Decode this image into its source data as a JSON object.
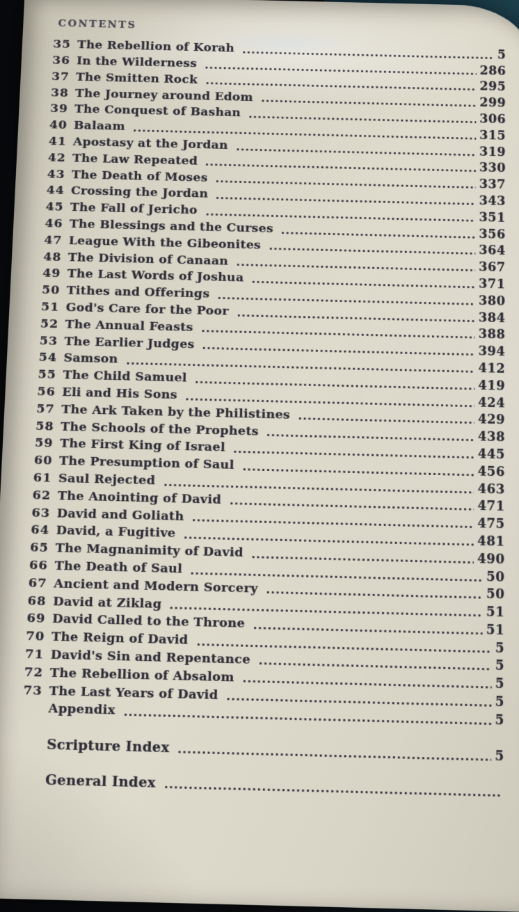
{
  "page": {
    "header": "CONTENTS"
  },
  "colors": {
    "paper": "#d8d4c6",
    "ink": "#2e2d36",
    "background_dark": "#0a0c10",
    "background_teal": "#16333f"
  },
  "toc": {
    "entries": [
      {
        "num": "35",
        "title": "The Rebellion of Korah",
        "page": "5"
      },
      {
        "num": "36",
        "title": "In the Wilderness",
        "page": "286"
      },
      {
        "num": "37",
        "title": "The Smitten Rock",
        "page": "295"
      },
      {
        "num": "38",
        "title": "The Journey around Edom",
        "page": "299"
      },
      {
        "num": "39",
        "title": "The Conquest of Bashan",
        "page": "306"
      },
      {
        "num": "40",
        "title": "Balaam",
        "page": "315"
      },
      {
        "num": "41",
        "title": "Apostasy at the Jordan",
        "page": "319"
      },
      {
        "num": "42",
        "title": "The Law Repeated",
        "page": "330"
      },
      {
        "num": "43",
        "title": "The Death of Moses",
        "page": "337"
      },
      {
        "num": "44",
        "title": "Crossing the Jordan",
        "page": "343"
      },
      {
        "num": "45",
        "title": "The Fall of Jericho",
        "page": "351"
      },
      {
        "num": "46",
        "title": "The Blessings and the Curses",
        "page": "356"
      },
      {
        "num": "47",
        "title": "League With the Gibeonites",
        "page": "364"
      },
      {
        "num": "48",
        "title": "The Division of Canaan",
        "page": "367"
      },
      {
        "num": "49",
        "title": "The Last Words of Joshua",
        "page": "371"
      },
      {
        "num": "50",
        "title": "Tithes and Offerings",
        "page": "380"
      },
      {
        "num": "51",
        "title": "God's Care for the Poor",
        "page": "384"
      },
      {
        "num": "52",
        "title": "The Annual Feasts",
        "page": "388"
      },
      {
        "num": "53",
        "title": "The Earlier Judges",
        "page": "394"
      },
      {
        "num": "54",
        "title": "Samson",
        "page": "412"
      },
      {
        "num": "55",
        "title": "The Child Samuel",
        "page": "419"
      },
      {
        "num": "56",
        "title": "Eli and His Sons",
        "page": "424"
      },
      {
        "num": "57",
        "title": "The Ark Taken by the Philistines",
        "page": "429"
      },
      {
        "num": "58",
        "title": "The Schools of the Prophets",
        "page": "438"
      },
      {
        "num": "59",
        "title": "The First King of Israel",
        "page": "445"
      },
      {
        "num": "60",
        "title": "The Presumption of Saul",
        "page": "456"
      },
      {
        "num": "61",
        "title": "Saul Rejected",
        "page": "463"
      },
      {
        "num": "62",
        "title": "The Anointing of David",
        "page": "471"
      },
      {
        "num": "63",
        "title": "David and Goliath",
        "page": "475"
      },
      {
        "num": "64",
        "title": "David, a Fugitive",
        "page": "481"
      },
      {
        "num": "65",
        "title": "The Magnanimity of David",
        "page": "490"
      },
      {
        "num": "66",
        "title": "The Death of Saul",
        "page": "50"
      },
      {
        "num": "67",
        "title": "Ancient and Modern Sorcery",
        "page": "50"
      },
      {
        "num": "68",
        "title": "David at Ziklag",
        "page": "51"
      },
      {
        "num": "69",
        "title": "David Called to the Throne",
        "page": "51"
      },
      {
        "num": "70",
        "title": "The Reign of David",
        "page": "5"
      },
      {
        "num": "71",
        "title": "David's Sin and Repentance",
        "page": "5"
      },
      {
        "num": "72",
        "title": "The Rebellion of Absalom",
        "page": "5"
      },
      {
        "num": "73",
        "title": "The Last Years of David",
        "page": "5"
      },
      {
        "num": "",
        "title": "Appendix",
        "page": "5"
      },
      {
        "num": "",
        "title": "Scripture Index",
        "page": "5",
        "gap": true
      },
      {
        "num": "",
        "title": "General Index",
        "page": "",
        "gap": true
      }
    ]
  }
}
